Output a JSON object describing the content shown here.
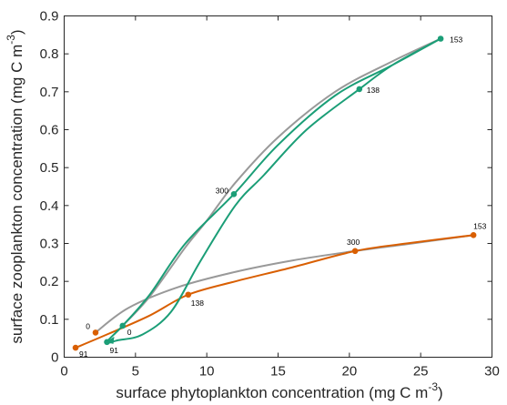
{
  "chart_data": {
    "type": "line",
    "xlabel": "surface phytoplankton concentration (mg C m",
    "xlabel_sup": "-3",
    "xlabel_end": ")",
    "ylabel": "surface zooplankton concentration (mg C m",
    "ylabel_sup": "-3",
    "ylabel_end": ")",
    "xlim": [
      0,
      30
    ],
    "ylim": [
      0,
      0.9
    ],
    "xticks": [
      "0",
      "5",
      "10",
      "15",
      "20",
      "25",
      "30"
    ],
    "yticks": [
      "0",
      "0.1",
      "0.2",
      "0.3",
      "0.4",
      "0.5",
      "0.6",
      "0.7",
      "0.8",
      "0.9"
    ],
    "grid": false,
    "colors": {
      "green": "#1b9e77",
      "orange": "#d95f02",
      "gray": "#999999",
      "axis": "#262626"
    },
    "series": [
      {
        "color": "#999999",
        "points": [
          [
            2.2,
            0.065
          ],
          [
            4.5,
            0.13
          ],
          [
            8,
            0.185
          ],
          [
            12,
            0.225
          ],
          [
            16,
            0.255
          ],
          [
            20,
            0.278
          ],
          [
            24,
            0.298
          ],
          [
            28.7,
            0.322
          ]
        ]
      },
      {
        "color": "#d95f02",
        "points": [
          [
            0.8,
            0.025
          ],
          [
            3,
            0.06
          ],
          [
            6,
            0.11
          ],
          [
            8.7,
            0.165
          ],
          [
            12,
            0.2
          ],
          [
            16,
            0.237
          ],
          [
            20.4,
            0.28
          ],
          [
            24,
            0.3
          ],
          [
            28.7,
            0.322
          ]
        ]
      },
      {
        "color": "#999999",
        "points": [
          [
            4.1,
            0.083
          ],
          [
            6,
            0.16
          ],
          [
            8.5,
            0.29
          ],
          [
            10,
            0.36
          ],
          [
            12,
            0.46
          ],
          [
            15,
            0.58
          ],
          [
            19,
            0.7
          ],
          [
            23,
            0.78
          ],
          [
            26.4,
            0.84
          ]
        ]
      },
      {
        "color": "#1b9e77",
        "points": [
          [
            26.4,
            0.84
          ],
          [
            23,
            0.77
          ],
          [
            20.7,
            0.707
          ],
          [
            17,
            0.6
          ],
          [
            14,
            0.48
          ],
          [
            12,
            0.4
          ],
          [
            9.5,
            0.25
          ],
          [
            7.5,
            0.12
          ],
          [
            5.5,
            0.06
          ],
          [
            3.8,
            0.045
          ],
          [
            3.0,
            0.04
          ],
          [
            4.1,
            0.083
          ],
          [
            6,
            0.165
          ],
          [
            8.5,
            0.3
          ],
          [
            11.9,
            0.43
          ],
          [
            15,
            0.56
          ],
          [
            19,
            0.69
          ],
          [
            23,
            0.77
          ],
          [
            26.4,
            0.84
          ]
        ]
      }
    ],
    "points": [
      {
        "x": 26.4,
        "y": 0.84,
        "label": "153",
        "color": "#1b9e77",
        "dx": 10,
        "dy": 4,
        "anchor": "start"
      },
      {
        "x": 20.7,
        "y": 0.707,
        "label": "138",
        "color": "#1b9e77",
        "dx": 8,
        "dy": 4,
        "anchor": "start"
      },
      {
        "x": 11.9,
        "y": 0.43,
        "label": "300",
        "color": "#1b9e77",
        "dx": -6,
        "dy": -1,
        "anchor": "end"
      },
      {
        "x": 4.1,
        "y": 0.083,
        "label": "0",
        "color": "#1b9e77",
        "dx": 5,
        "dy": 10,
        "anchor": "start"
      },
      {
        "x": 3.0,
        "y": 0.04,
        "label": "91",
        "color": "#1b9e77",
        "dx": 3,
        "dy": 12,
        "anchor": "start"
      },
      {
        "x": 28.7,
        "y": 0.322,
        "label": "153",
        "color": "#d95f02",
        "dx": 0,
        "dy": -7,
        "anchor": "start"
      },
      {
        "x": 20.4,
        "y": 0.28,
        "label": "300",
        "color": "#d95f02",
        "dx": -2,
        "dy": -7,
        "anchor": "middle"
      },
      {
        "x": 8.7,
        "y": 0.165,
        "label": "138",
        "color": "#d95f02",
        "dx": 3,
        "dy": 12,
        "anchor": "start"
      },
      {
        "x": 2.2,
        "y": 0.065,
        "label": "0",
        "color": "#d95f02",
        "dx": -6,
        "dy": -4,
        "anchor": "end"
      },
      {
        "x": 0.8,
        "y": 0.025,
        "label": "91",
        "color": "#d95f02",
        "dx": 4,
        "dy": 10,
        "anchor": "start"
      }
    ]
  }
}
